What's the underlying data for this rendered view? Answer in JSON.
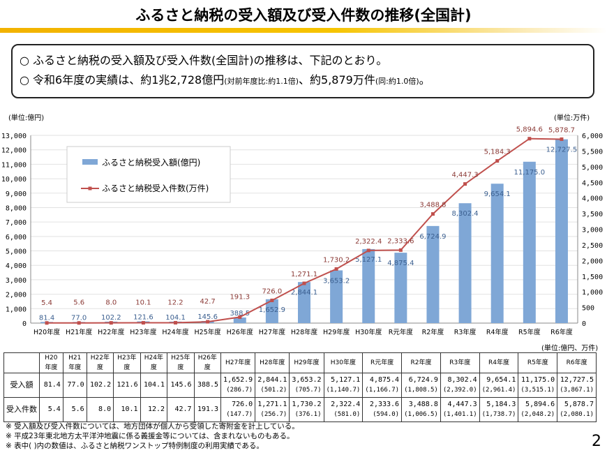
{
  "title": "ふるさと納税の受入額及び受入件数の推移(全国計)",
  "summary": {
    "line1": "○ ふるさと納税の受入額及び受入件数(全国計)の推移は、下記のとおり。",
    "line2_main": "○ 令和6年度の実績は、約1兆2,728億円",
    "line2_note1": "(対前年度比:約1.1倍)",
    "line2_mid": "、約5,879万件",
    "line2_note2": "(同:約1.0倍)",
    "line2_end": "。"
  },
  "chart_data": {
    "type": "bar+line",
    "categories": [
      "H20年度",
      "H21年度",
      "H22年度",
      "H23年度",
      "H24年度",
      "H25年度",
      "H26年度",
      "H27年度",
      "H28年度",
      "H29年度",
      "H30年度",
      "R元年度",
      "R2年度",
      "R3年度",
      "R4年度",
      "R5年度",
      "R6年度"
    ],
    "series": [
      {
        "name": "ふるさと納税受入額(億円)",
        "type": "bar",
        "axis": "left",
        "color": "#7fa7d6",
        "values": [
          81.4,
          77.0,
          102.2,
          121.6,
          104.1,
          145.6,
          388.5,
          1652.9,
          2844.1,
          3653.2,
          5127.1,
          4875.4,
          6724.9,
          8302.4,
          9654.1,
          11175.0,
          12727.5
        ]
      },
      {
        "name": "ふるさと納税受入件数(万件)",
        "type": "line",
        "axis": "right",
        "color": "#c0504d",
        "values": [
          5.4,
          5.6,
          8.0,
          10.1,
          12.2,
          42.7,
          191.3,
          726.0,
          1271.1,
          1730.2,
          2322.4,
          2333.6,
          3488.8,
          4447.3,
          5184.3,
          5894.6,
          5878.7
        ]
      }
    ],
    "ylabel_left": "(単位:億円)",
    "ylabel_right": "(単位:万件)",
    "ylim_left": [
      0,
      13000
    ],
    "ylim_right": [
      0,
      6000
    ],
    "yticks_left": [
      "0",
      "1,000",
      "2,000",
      "3,000",
      "4,000",
      "5,000",
      "6,000",
      "7,000",
      "8,000",
      "9,000",
      "10,000",
      "11,000",
      "12,000",
      "13,000"
    ],
    "yticks_right": [
      "0",
      "500",
      "1,000",
      "1,500",
      "2,000",
      "2,500",
      "3,000",
      "3,500",
      "4,000",
      "4,500",
      "5,000",
      "5,500",
      "6,000"
    ],
    "legend": "top-left",
    "grid": true
  },
  "table": {
    "unit": "(単位:億円、万件)",
    "row_labels": [
      "受入額",
      "受入件数"
    ],
    "amount": [
      "81.4",
      "77.0",
      "102.2",
      "121.6",
      "104.1",
      "145.6",
      "388.5",
      "1,652.9",
      "2,844.1",
      "3,653.2",
      "5,127.1",
      "4,875.4",
      "6,724.9",
      "8,302.4",
      "9,654.1",
      "11,175.0",
      "12,727.5"
    ],
    "amount_sub": [
      "",
      "",
      "",
      "",
      "",
      "",
      "",
      "(286.7)",
      "(501.2)",
      "(705.7)",
      "(1,140.7)",
      "(1,166.7)",
      "(1,808.5)",
      "(2,392.0)",
      "(2,961.4)",
      "(3,515.1)",
      "(3,867.1)"
    ],
    "count": [
      "5.4",
      "5.6",
      "8.0",
      "10.1",
      "12.2",
      "42.7",
      "191.3",
      "726.0",
      "1,271.1",
      "1,730.2",
      "2,322.4",
      "2,333.6",
      "3,488.8",
      "4,447.3",
      "5,184.3",
      "5,894.6",
      "5,878.7"
    ],
    "count_sub": [
      "",
      "",
      "",
      "",
      "",
      "",
      "",
      "(147.7)",
      "(256.7)",
      "(376.1)",
      "(581.0)",
      "(594.0)",
      "(1,006.5)",
      "(1,401.1)",
      "(1,738.7)",
      "(2,048.2)",
      "(2,080.1)"
    ]
  },
  "notes": [
    "※ 受入額及び受入件数については、地方団体が個人から受領した寄附金を計上している。",
    "※ 平成23年東北地方太平洋沖地震に係る義援金等については、含まれないものもある。",
    "※ 表中( )内の数値は、ふるさと納税ワンストップ特例制度の利用実績である。"
  ],
  "page_number": "2"
}
